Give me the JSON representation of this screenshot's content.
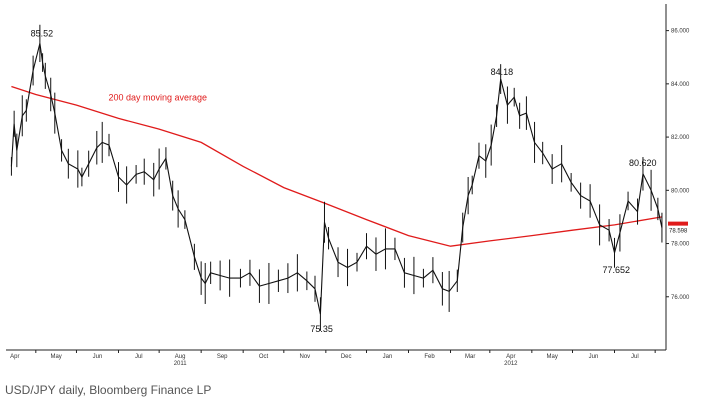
{
  "caption": "USD/JPY daily, Bloomberg Finance LP",
  "colors": {
    "price": "#111111",
    "moving_average": "#e01b1b",
    "axis": "#222222",
    "caption": "#555555"
  },
  "chart_data": {
    "type": "line",
    "title": "",
    "xlabel": "",
    "ylabel": "",
    "ylim": [
      74,
      87
    ],
    "y_ticks": [
      86,
      84,
      82,
      80,
      78,
      76
    ],
    "y_tick_labels": [
      "86.000",
      "84.000",
      "82.000",
      "80.000",
      "78.000",
      "76.000"
    ],
    "x_month_labels": [
      "Apr",
      "May",
      "Jun",
      "Jul",
      "Aug",
      "Sep",
      "Oct",
      "Nov",
      "Dec",
      "Jan",
      "Feb",
      "Mar",
      "Apr",
      "May",
      "Jun",
      "Jul"
    ],
    "x_year_labels": [
      {
        "label": "2011",
        "under": "Aug"
      },
      {
        "label": "2012",
        "under": "Apr"
      }
    ],
    "legend": "none",
    "grid": false,
    "last_price_label": "78.598",
    "series": [
      {
        "name": "",
        "style": "daily-bars",
        "x": [
          "2011-03-14",
          "2011-03-16",
          "2011-03-18",
          "2011-03-22",
          "2011-03-25",
          "2011-03-30",
          "2011-04-04",
          "2011-04-06",
          "2011-04-08",
          "2011-04-12",
          "2011-04-15",
          "2011-04-20",
          "2011-04-25",
          "2011-05-02",
          "2011-05-05",
          "2011-05-10",
          "2011-05-16",
          "2011-05-20",
          "2011-05-25",
          "2011-06-01",
          "2011-06-07",
          "2011-06-14",
          "2011-06-20",
          "2011-06-27",
          "2011-07-01",
          "2011-07-06",
          "2011-07-11",
          "2011-07-15",
          "2011-07-20",
          "2011-07-27",
          "2011-08-01",
          "2011-08-04",
          "2011-08-08",
          "2011-08-15",
          "2011-08-22",
          "2011-08-30",
          "2011-09-06",
          "2011-09-13",
          "2011-09-20",
          "2011-09-27",
          "2011-10-04",
          "2011-10-11",
          "2011-10-18",
          "2011-10-24",
          "2011-10-28",
          "2011-10-31",
          "2011-11-03",
          "2011-11-10",
          "2011-11-17",
          "2011-11-24",
          "2011-12-01",
          "2011-12-08",
          "2011-12-15",
          "2011-12-22",
          "2011-12-29",
          "2012-01-05",
          "2012-01-12",
          "2012-01-19",
          "2012-01-26",
          "2012-01-31",
          "2012-02-06",
          "2012-02-10",
          "2012-02-14",
          "2012-02-17",
          "2012-02-22",
          "2012-02-27",
          "2012-03-02",
          "2012-03-06",
          "2012-03-09",
          "2012-03-14",
          "2012-03-19",
          "2012-03-23",
          "2012-03-28",
          "2012-04-03",
          "2012-04-09",
          "2012-04-16",
          "2012-04-23",
          "2012-04-30",
          "2012-05-07",
          "2012-05-14",
          "2012-05-21",
          "2012-05-28",
          "2012-06-01",
          "2012-06-05",
          "2012-06-11",
          "2012-06-18",
          "2012-06-22",
          "2012-06-28",
          "2012-07-03",
          "2012-07-06"
        ],
        "y": [
          80.9,
          82.5,
          81.5,
          82.8,
          83.0,
          84.5,
          85.52,
          84.8,
          84.3,
          83.6,
          82.9,
          81.5,
          81.0,
          80.8,
          80.5,
          81.0,
          81.6,
          81.8,
          81.7,
          80.5,
          80.2,
          80.6,
          80.7,
          80.4,
          80.8,
          81.2,
          79.8,
          79.3,
          78.9,
          77.5,
          76.7,
          76.5,
          76.9,
          76.8,
          76.7,
          76.7,
          76.9,
          76.4,
          76.5,
          76.6,
          76.7,
          76.9,
          76.6,
          76.3,
          75.35,
          78.8,
          78.2,
          77.3,
          77.1,
          77.3,
          77.9,
          77.6,
          77.8,
          77.8,
          76.9,
          76.8,
          76.7,
          77.0,
          76.3,
          76.2,
          76.6,
          78.6,
          79.8,
          80.2,
          81.3,
          81.1,
          81.7,
          82.8,
          84.18,
          83.2,
          83.5,
          82.8,
          82.9,
          81.8,
          81.4,
          80.8,
          81.0,
          80.3,
          79.8,
          79.6,
          78.7,
          78.5,
          77.652,
          78.4,
          79.6,
          79.2,
          80.62,
          80.0,
          79.3,
          78.598
        ]
      },
      {
        "name": "200 day moving average",
        "style": "line",
        "x": [
          "2011-03-14",
          "2011-04-01",
          "2011-05-01",
          "2011-06-01",
          "2011-07-01",
          "2011-08-01",
          "2011-09-01",
          "2011-10-01",
          "2011-11-01",
          "2011-12-01",
          "2012-01-01",
          "2012-02-01",
          "2012-03-01",
          "2012-04-01",
          "2012-05-01",
          "2012-06-01",
          "2012-07-06"
        ],
        "y": [
          83.9,
          83.6,
          83.2,
          82.7,
          82.3,
          81.8,
          80.9,
          80.1,
          79.5,
          78.9,
          78.3,
          77.9,
          78.1,
          78.3,
          78.5,
          78.7,
          79.0
        ]
      }
    ],
    "annotations": [
      {
        "text": "85.52",
        "x": "2011-04-06",
        "y": 85.52
      },
      {
        "text": "84.18",
        "x": "2012-03-09",
        "y": 84.18
      },
      {
        "text": "80.620",
        "x": "2012-06-22",
        "y": 80.62
      },
      {
        "text": "77.652",
        "x": "2012-06-01",
        "y": 77.652
      },
      {
        "text": "75.35",
        "x": "2011-10-28",
        "y": 75.35
      },
      {
        "text": "200 day moving average",
        "x": "2011-06-01",
        "y": 83.0
      }
    ]
  }
}
